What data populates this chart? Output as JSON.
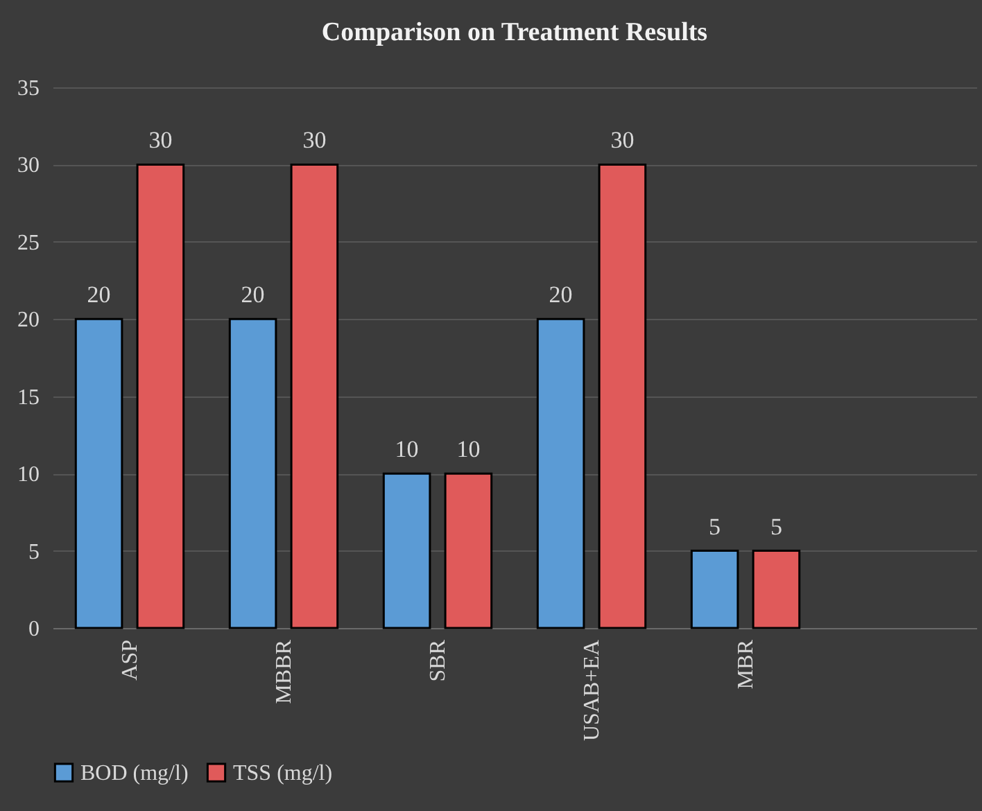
{
  "chart_data": {
    "type": "bar",
    "title": "Comparison on Treatment Results",
    "categories": [
      "ASP",
      "MBBR",
      "SBR",
      "USAB+EA",
      "MBR",
      null
    ],
    "series": [
      {
        "name": "BOD (mg/l)",
        "color": "#5b9bd5",
        "values": [
          20,
          20,
          10,
          20,
          5,
          null
        ]
      },
      {
        "name": "TSS (mg/l)",
        "color": "#e05a5a",
        "values": [
          30,
          30,
          10,
          30,
          5,
          null
        ]
      }
    ],
    "ylim": [
      0,
      35
    ],
    "yticks": [
      0,
      5,
      10,
      15,
      20,
      25,
      30,
      35
    ],
    "grid": "y",
    "legend": "bottom",
    "data_labels": true
  }
}
